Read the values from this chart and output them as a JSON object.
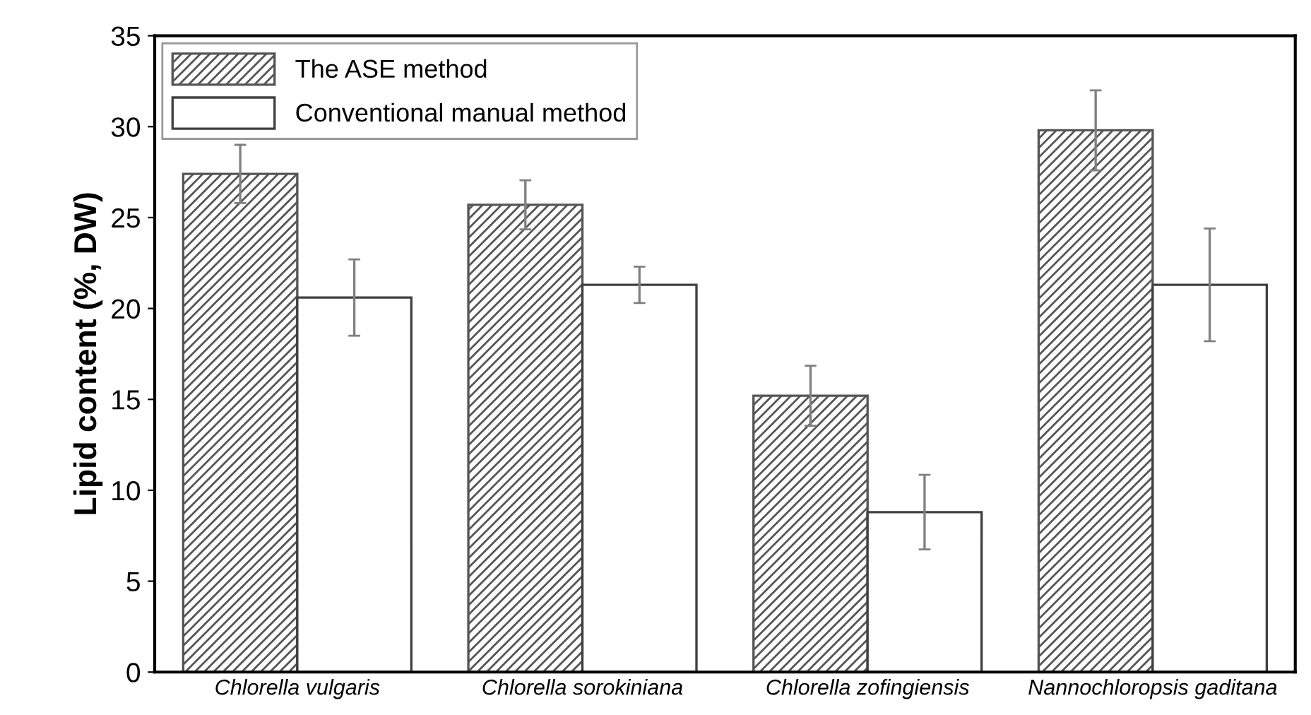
{
  "chart_data": {
    "type": "bar",
    "ylabel": "Lipid content (%, DW)",
    "categories": [
      "Chlorella vulgaris",
      "Chlorella sorokiniana",
      "Chlorella zofingiensis",
      "Nannochloropsis gaditana"
    ],
    "series": [
      {
        "name": "The ASE method",
        "color": "#555555",
        "values": [
          27.4,
          25.7,
          15.2,
          29.8
        ],
        "errors": [
          1.6,
          1.35,
          1.65,
          2.2
        ]
      },
      {
        "name": "Conventional manual method",
        "color": "#ffffff",
        "values": [
          20.6,
          21.3,
          8.8,
          21.3
        ],
        "errors": [
          2.1,
          1.0,
          2.05,
          3.1
        ]
      }
    ],
    "ylim": [
      0,
      35
    ],
    "yticks": [
      0,
      5,
      10,
      15,
      20,
      25,
      30,
      35
    ],
    "grid": false,
    "legend": "top left"
  }
}
